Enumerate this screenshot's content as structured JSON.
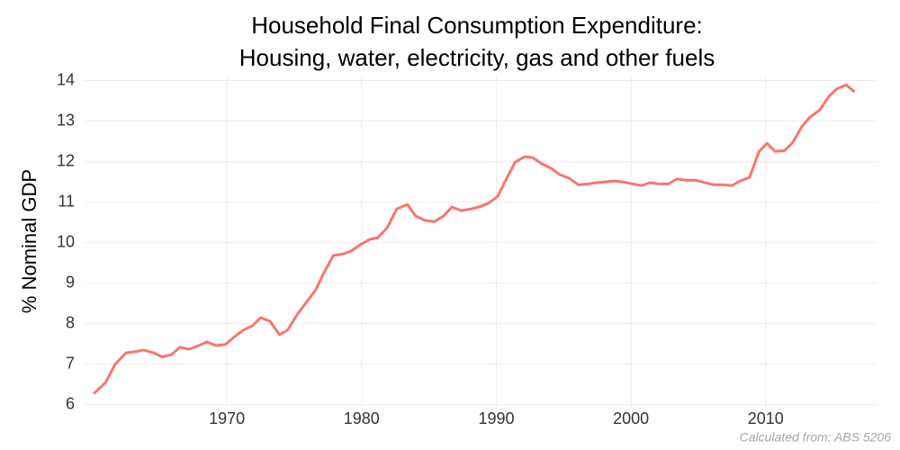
{
  "chart_data": {
    "type": "line",
    "title": [
      "Household Final Consumption Expenditure:",
      "Housing, water, electricity, gas and other fuels"
    ],
    "y_label": "% Nominal GDP",
    "caption": "Calculated from: ABS 5206",
    "x": [
      1960.1,
      1961.0,
      1961.7,
      1962.5,
      1963.2,
      1963.8,
      1964.5,
      1965.2,
      1965.9,
      1966.5,
      1967.2,
      1967.9,
      1968.5,
      1969.2,
      1969.9,
      1970.5,
      1971.2,
      1971.9,
      1972.5,
      1973.2,
      1973.9,
      1974.5,
      1975.2,
      1975.9,
      1976.6,
      1977.2,
      1977.9,
      1978.6,
      1979.2,
      1979.9,
      1980.6,
      1981.2,
      1981.9,
      1982.6,
      1983.4,
      1984.0,
      1984.7,
      1985.4,
      1986.1,
      1986.7,
      1987.4,
      1988.1,
      1988.7,
      1989.4,
      1990.1,
      1990.7,
      1991.4,
      1992.1,
      1992.7,
      1993.4,
      1994.1,
      1994.7,
      1995.4,
      1996.1,
      1996.8,
      1997.4,
      1998.1,
      1998.8,
      1999.4,
      2000.1,
      2000.8,
      2001.4,
      2002.1,
      2002.8,
      2003.4,
      2004.1,
      2004.8,
      2005.5,
      2006.1,
      2006.8,
      2007.5,
      2008.1,
      2008.8,
      2009.5,
      2010.1,
      2010.7,
      2011.4,
      2012.0,
      2012.7,
      2013.3,
      2014.0,
      2014.7,
      2015.3,
      2016.0,
      2016.6
    ],
    "series": [
      {
        "name": "Housing, water, electricity, gas and other fuels",
        "color": "#f8766d",
        "values": [
          6.27,
          6.55,
          7.0,
          7.28,
          7.31,
          7.35,
          7.29,
          7.18,
          7.24,
          7.42,
          7.37,
          7.46,
          7.55,
          7.46,
          7.49,
          7.66,
          7.84,
          7.95,
          8.15,
          8.06,
          7.73,
          7.84,
          8.22,
          8.53,
          8.84,
          9.26,
          9.68,
          9.72,
          9.79,
          9.95,
          10.08,
          10.12,
          10.37,
          10.83,
          10.94,
          10.66,
          10.55,
          10.52,
          10.66,
          10.88,
          10.79,
          10.83,
          10.88,
          10.97,
          11.14,
          11.54,
          11.99,
          12.12,
          12.1,
          11.94,
          11.83,
          11.68,
          11.59,
          11.43,
          11.45,
          11.48,
          11.5,
          11.52,
          11.5,
          11.45,
          11.41,
          11.48,
          11.45,
          11.45,
          11.57,
          11.54,
          11.54,
          11.48,
          11.43,
          11.43,
          11.41,
          11.52,
          11.61,
          12.25,
          12.45,
          12.25,
          12.27,
          12.47,
          12.87,
          13.1,
          13.27,
          13.61,
          13.8,
          13.89,
          13.72
        ]
      }
    ],
    "xlim": [
      1959.5,
      2018.3
    ],
    "xticks": [
      1970,
      1980,
      1990,
      2000,
      2010
    ],
    "ylim": [
      5.95,
      14.1
    ],
    "yticks": [
      6,
      7,
      8,
      9,
      10,
      11,
      12,
      13,
      14
    ],
    "grid": true
  }
}
